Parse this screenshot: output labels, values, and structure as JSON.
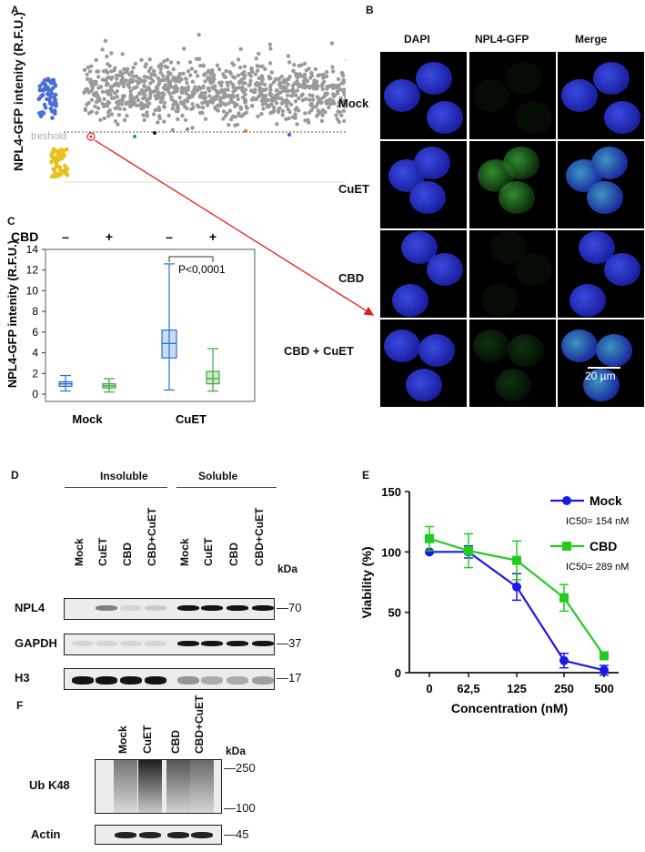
{
  "panelA": {
    "letter": "A",
    "ylabel": "NPL4-GFP intenity (R.F.U.)",
    "threshold_label": "treshold",
    "colors": {
      "grey": "#9a9a9a",
      "blue": "#4a6ed8",
      "yellow": "#e8c21a",
      "threshold": "#555555",
      "arrow": "#e02020"
    }
  },
  "panelB": {
    "letter": "B",
    "columns": [
      "DAPI",
      "NPL4-GFP",
      "Merge"
    ],
    "rows": [
      "Mock",
      "CuET",
      "CBD",
      "CBD + CuET"
    ],
    "scalebar": "20 µm"
  },
  "panelC": {
    "letter": "C",
    "treatment_label": "CBD",
    "signs": [
      "–",
      "+",
      "–",
      "+"
    ],
    "pvalue": "P<0,0001",
    "chart_data": {
      "type": "box",
      "ylabel": "NPL4-GFP intenity (R.F.U.)",
      "groups": [
        "Mock",
        "CuET"
      ],
      "ylim": [
        0,
        14
      ],
      "yticks": [
        0,
        2,
        4,
        6,
        8,
        10,
        12,
        14
      ],
      "boxes": [
        {
          "group": "Mock",
          "cbd": "–",
          "min": 0.3,
          "q1": 0.75,
          "median": 1.0,
          "q3": 1.2,
          "max": 1.8,
          "color": "#2a6fd6"
        },
        {
          "group": "Mock",
          "cbd": "+",
          "min": 0.2,
          "q1": 0.6,
          "median": 0.8,
          "q3": 1.0,
          "max": 1.5,
          "color": "#3aa83a"
        },
        {
          "group": "CuET",
          "cbd": "–",
          "min": 0.4,
          "q1": 3.5,
          "median": 4.9,
          "q3": 6.2,
          "max": 12.6,
          "color": "#2a6fd6"
        },
        {
          "group": "CuET",
          "cbd": "+",
          "min": 0.3,
          "q1": 1.0,
          "median": 1.5,
          "q3": 2.2,
          "max": 4.4,
          "color": "#3aa83a"
        }
      ]
    }
  },
  "panelD": {
    "letter": "D",
    "insoluble": "Insoluble",
    "soluble": "Soluble",
    "lanes": [
      "Mock",
      "CuET",
      "CBD",
      "CBD+CuET",
      "Mock",
      "CuET",
      "CBD",
      "CBD+CuET"
    ],
    "kda": "kDa",
    "blots": [
      {
        "name": "NPL4",
        "marker": "70"
      },
      {
        "name": "GAPDH",
        "marker": "37"
      },
      {
        "name": "H3",
        "marker": "17"
      }
    ]
  },
  "panelE": {
    "letter": "E",
    "chart_data": {
      "type": "line",
      "xlabel": "Concentration (nM)",
      "ylabel": "Viability (%)",
      "x": [
        "0",
        "62,5",
        "125",
        "250",
        "500"
      ],
      "ylim": [
        0,
        150
      ],
      "yticks": [
        0,
        50,
        100,
        150
      ],
      "series": [
        {
          "name": "Mock",
          "ic50": "IC50= 154 nM",
          "color": "#1a1ae6",
          "values": [
            100,
            100,
            71,
            10,
            2
          ],
          "errors": [
            0,
            5,
            11,
            6,
            4
          ]
        },
        {
          "name": "CBD",
          "ic50": "IC50= 289 nM",
          "color": "#22cc22",
          "values": [
            111,
            101,
            93,
            62,
            14
          ],
          "errors": [
            10,
            14,
            16,
            11,
            0
          ]
        }
      ]
    },
    "ic50_mock_prefix": "IC",
    "ic50_mock_sub": "50",
    "ic50_mock_value": "= 154 nM",
    "ic50_cbd_value": "= 289 nM",
    "xlabel_main": "Concentration (",
    "xlabel_unit": "nM",
    "xlabel_end": ")"
  },
  "panelF": {
    "letter": "F",
    "lanes": [
      "Mock",
      "CuET",
      "CBD",
      "CBD+CuET"
    ],
    "kda": "kDa",
    "blots": [
      {
        "name": "Ub K48",
        "markers": [
          "250",
          "100"
        ]
      },
      {
        "name": "Actin",
        "markers": [
          "45"
        ]
      }
    ]
  }
}
